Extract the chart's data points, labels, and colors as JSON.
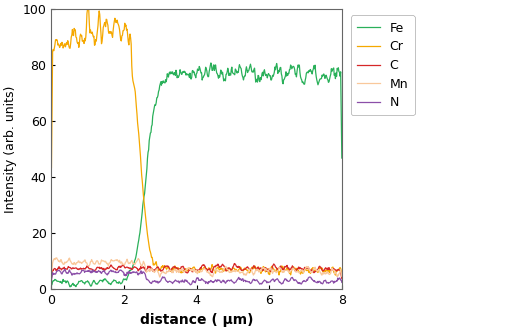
{
  "title": "",
  "xlabel": "distance ( μm)",
  "ylabel": "Intensity (arb. units)",
  "xlim": [
    0,
    8
  ],
  "ylim": [
    0,
    100
  ],
  "xticks": [
    0,
    2,
    4,
    6,
    8
  ],
  "yticks": [
    0,
    20,
    40,
    60,
    80,
    100
  ],
  "legend_entries": [
    "Fe",
    "Cr",
    "C",
    "Mn",
    "N"
  ],
  "colors": {
    "Fe": "#2ab05a",
    "Cr": "#f5a800",
    "C": "#d62728",
    "Mn": "#f9c89b",
    "N": "#8b4fa8"
  },
  "background_color": "#ffffff",
  "plot_background": "#ffffff",
  "figsize": [
    5.12,
    3.31
  ],
  "dpi": 100
}
